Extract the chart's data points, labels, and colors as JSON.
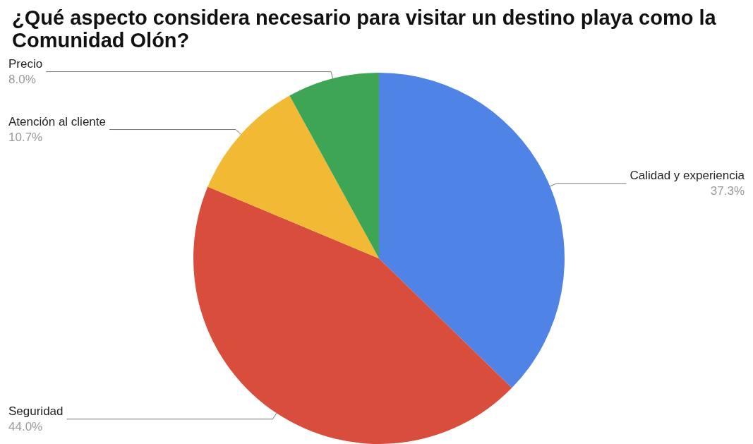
{
  "chart_data": {
    "type": "pie",
    "title": "¿Qué aspecto considera necesario para visitar un destino playa como la Comunidad Olón?",
    "categories": [
      "Calidad y experiencia",
      "Seguridad",
      "Atención al cliente",
      "Precio"
    ],
    "values": [
      37.3,
      44.0,
      10.7,
      8.0
    ],
    "colors": [
      "#5083e6",
      "#d84d3b",
      "#f2b935",
      "#3da554"
    ],
    "value_labels": [
      "37.3%",
      "44.0%",
      "10.7%",
      "8.0%"
    ],
    "legend": false
  }
}
